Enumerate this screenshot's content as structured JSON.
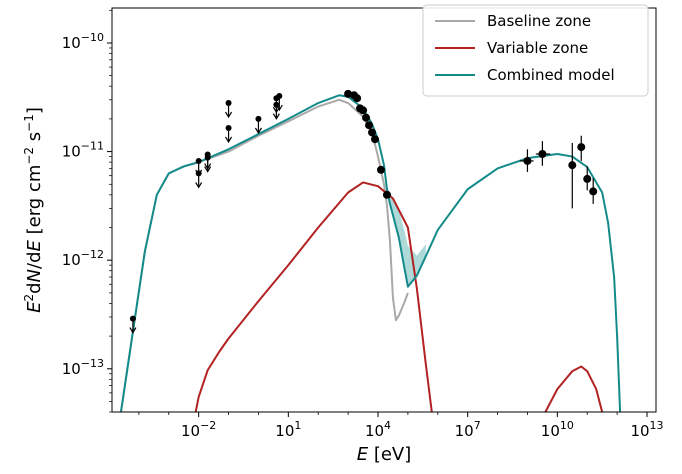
{
  "chart_data": {
    "type": "line",
    "xlabel": "E [eV]",
    "ylabel": "E²dN/dE [erg cm⁻² s⁻¹]",
    "x_scale": "log",
    "y_scale": "log",
    "xlim": [
      1.26e-05,
      20000000000000
    ],
    "ylim": [
      4e-14,
      2.1e-10
    ],
    "x_tick_values": [
      0.01,
      10,
      10000,
      10000000,
      10000000000,
      10000000000000
    ],
    "x_tick_labels": [
      {
        "base": "10",
        "exp": "−2"
      },
      {
        "base": "10",
        "exp": "1"
      },
      {
        "base": "10",
        "exp": "4"
      },
      {
        "base": "10",
        "exp": "7"
      },
      {
        "base": "10",
        "exp": "10"
      },
      {
        "base": "10",
        "exp": "13"
      }
    ],
    "y_tick_values": [
      1e-13,
      1e-12,
      1e-11,
      1e-10
    ],
    "y_tick_labels": [
      {
        "base": "10",
        "exp": "−13"
      },
      {
        "base": "10",
        "exp": "−12"
      },
      {
        "base": "10",
        "exp": "−11"
      },
      {
        "base": "10",
        "exp": "−10"
      }
    ],
    "legend_position": "top-right",
    "series": [
      {
        "name": "Baseline zone",
        "color": "#a9a9a9",
        "points": [
          [
            2.51e-05,
            4e-14
          ],
          [
            6.31e-05,
            2.2e-13
          ],
          [
            0.000158,
            1.2e-12
          ],
          [
            0.000398,
            4e-12
          ],
          [
            0.001,
            6.3e-12
          ],
          [
            0.00316,
            7.3e-12
          ],
          [
            0.01,
            8e-12
          ],
          [
            0.1,
            1e-11
          ],
          [
            1,
            1.4e-11
          ],
          [
            10,
            1.9e-11
          ],
          [
            100,
            2.6e-11
          ],
          [
            500,
            3e-11
          ],
          [
            1000,
            2.8e-11
          ],
          [
            3162,
            2.1e-11
          ],
          [
            6310,
            1.5e-11
          ],
          [
            10000,
            9e-12
          ],
          [
            15850,
            5e-12
          ],
          [
            19950,
            3.2e-12
          ],
          [
            25120,
            1.5e-12
          ],
          [
            31620,
            4.5e-13
          ],
          [
            39810,
            2.8e-13
          ],
          [
            50120,
            3.1e-13
          ],
          [
            63100,
            3.6e-13
          ],
          [
            79430,
            4.2e-13
          ],
          [
            100000,
            5e-13
          ]
        ]
      },
      {
        "name": "Variable zone",
        "color": "#b22222",
        "segments": [
          [
            [
              0.00794,
              4e-14
            ],
            [
              0.01,
              5.5e-14
            ],
            [
              0.02,
              9.7e-14
            ],
            [
              0.05,
              1.45e-13
            ],
            [
              0.1,
              1.9e-13
            ],
            [
              1,
              4.2e-13
            ],
            [
              10,
              9e-13
            ],
            [
              100,
              2e-12
            ],
            [
              1000,
              4.2e-12
            ],
            [
              3162,
              5.2e-12
            ],
            [
              10000,
              4.8e-12
            ],
            [
              31620,
              3.7e-12
            ],
            [
              100000,
              2e-12
            ],
            [
              199500,
              5.5e-13
            ],
            [
              398100,
              1.1e-13
            ],
            [
              631000,
              4e-14
            ]
          ],
          [
            [
              3980000000.0,
              4e-14
            ],
            [
              10000000000.0,
              6.5e-14
            ],
            [
              31600000000.0,
              9.5e-14
            ],
            [
              63100000000.0,
              1.05e-13
            ],
            [
              100000000000.0,
              9.5e-14
            ],
            [
              200000000000.0,
              6.5e-14
            ],
            [
              316000000000.0,
              4e-14
            ]
          ]
        ]
      },
      {
        "name": "Combined model",
        "color": "#148b8b",
        "points": [
          [
            2.51e-05,
            4e-14
          ],
          [
            6.31e-05,
            2.2e-13
          ],
          [
            0.000158,
            1.2e-12
          ],
          [
            0.000398,
            4e-12
          ],
          [
            0.001,
            6.3e-12
          ],
          [
            0.00316,
            7.3e-12
          ],
          [
            0.01,
            8e-12
          ],
          [
            0.1,
            1.05e-11
          ],
          [
            1,
            1.45e-11
          ],
          [
            10,
            2e-11
          ],
          [
            100,
            2.8e-11
          ],
          [
            500,
            3.3e-11
          ],
          [
            1000,
            3.2e-11
          ],
          [
            3162,
            2.5e-11
          ],
          [
            6310,
            1.8e-11
          ],
          [
            10000,
            1.3e-11
          ],
          [
            15850,
            7.5e-12
          ],
          [
            19950,
            4.5e-12
          ],
          [
            25120,
            3.3e-12
          ],
          [
            31620,
            2.6e-12
          ],
          [
            50120,
            1.6e-12
          ],
          [
            79430,
            8e-13
          ],
          [
            100000,
            5.7e-13
          ],
          [
            199500,
            7.2e-13
          ],
          [
            501200,
            1.25e-12
          ],
          [
            1000000,
            1.9e-12
          ],
          [
            10000000,
            4.5e-12
          ],
          [
            100000000,
            7e-12
          ],
          [
            1000000000,
            8.7e-12
          ],
          [
            10000000000,
            9.5e-12
          ],
          [
            31620000000,
            9e-12
          ],
          [
            100000000000,
            7.2e-12
          ],
          [
            316200000000,
            4.2e-12
          ],
          [
            501200000000,
            2.2e-12
          ],
          [
            794300000000,
            7e-13
          ],
          [
            1000000000000,
            2e-13
          ],
          [
            1259000000000,
            4e-14
          ]
        ]
      }
    ],
    "uncertainty_band": {
      "color": "#9fd2d2",
      "upper": [
        [
          15850,
          7.5e-12
        ],
        [
          19950,
          4.7e-12
        ],
        [
          25120,
          4.2e-12
        ],
        [
          31620,
          3.8e-12
        ],
        [
          50120,
          2.9e-12
        ],
        [
          79430,
          1.8e-12
        ],
        [
          100000,
          1.35e-12
        ],
        [
          199500,
          1.1e-12
        ],
        [
          398100,
          1.4e-12
        ]
      ],
      "lower": [
        [
          15850,
          7.5e-12
        ],
        [
          19950,
          4.5e-12
        ],
        [
          25120,
          3.3e-12
        ],
        [
          31620,
          2.6e-12
        ],
        [
          50120,
          1.6e-12
        ],
        [
          79430,
          8e-13
        ],
        [
          100000,
          5.7e-13
        ],
        [
          199500,
          7.2e-13
        ],
        [
          398100,
          1.1e-12
        ]
      ]
    },
    "data_points": [
      {
        "x": 6.31e-05,
        "y": 2.9e-13,
        "upper_limit": true
      },
      {
        "x": 0.01,
        "y": 8.2e-12,
        "upper_limit": true
      },
      {
        "x": 0.01,
        "y": 6.3e-12,
        "upper_limit": true
      },
      {
        "x": 0.02,
        "y": 8.8e-12,
        "upper_limit": true
      },
      {
        "x": 0.02,
        "y": 9.4e-12,
        "upper_limit": true
      },
      {
        "x": 0.1,
        "y": 2.8e-11,
        "upper_limit": true
      },
      {
        "x": 0.1,
        "y": 1.65e-11,
        "upper_limit": true
      },
      {
        "x": 1,
        "y": 2e-11,
        "upper_limit": true
      },
      {
        "x": 3.98,
        "y": 2.7e-11,
        "upper_limit": true
      },
      {
        "x": 3.98,
        "y": 3.1e-11,
        "upper_limit": true
      },
      {
        "x": 5,
        "y": 3.25e-11,
        "upper_limit": true
      },
      {
        "x": 1000,
        "y": 3.4e-11
      },
      {
        "x": 1585,
        "y": 3.3e-11
      },
      {
        "x": 2000,
        "y": 3.1e-11
      },
      {
        "x": 2512,
        "y": 2.5e-11
      },
      {
        "x": 3162,
        "y": 2.4e-11
      },
      {
        "x": 3981,
        "y": 2.05e-11
      },
      {
        "x": 5012,
        "y": 1.75e-11
      },
      {
        "x": 6310,
        "y": 1.5e-11
      },
      {
        "x": 7943,
        "y": 1.3e-11
      },
      {
        "x": 12590,
        "y": 6.8e-12
      },
      {
        "x": 19950,
        "y": 4e-12
      },
      {
        "x": 1000000000,
        "y": 8.2e-12,
        "xerr": [
          560000000.0,
          1600000000.0
        ],
        "yerr": [
          6.5e-12,
          1.05e-11
        ]
      },
      {
        "x": 3162000000,
        "y": 9.5e-12,
        "xerr": [
          1900000000.0,
          5800000000.0
        ],
        "yerr": [
          7.4e-12,
          1.25e-11
        ]
      },
      {
        "x": 31620000000,
        "y": 7.5e-12,
        "yerr": [
          3e-12,
          1.2e-11
        ]
      },
      {
        "x": 63100000000,
        "y": 1.1e-11,
        "yerr": [
          8.2e-12,
          1.4e-11
        ]
      },
      {
        "x": 100000000000,
        "y": 5.6e-12,
        "yerr": [
          4.4e-12,
          7.3e-12
        ]
      },
      {
        "x": 158500000000,
        "y": 4.3e-12,
        "yerr": [
          3.3e-12,
          5.7e-12
        ]
      }
    ]
  }
}
